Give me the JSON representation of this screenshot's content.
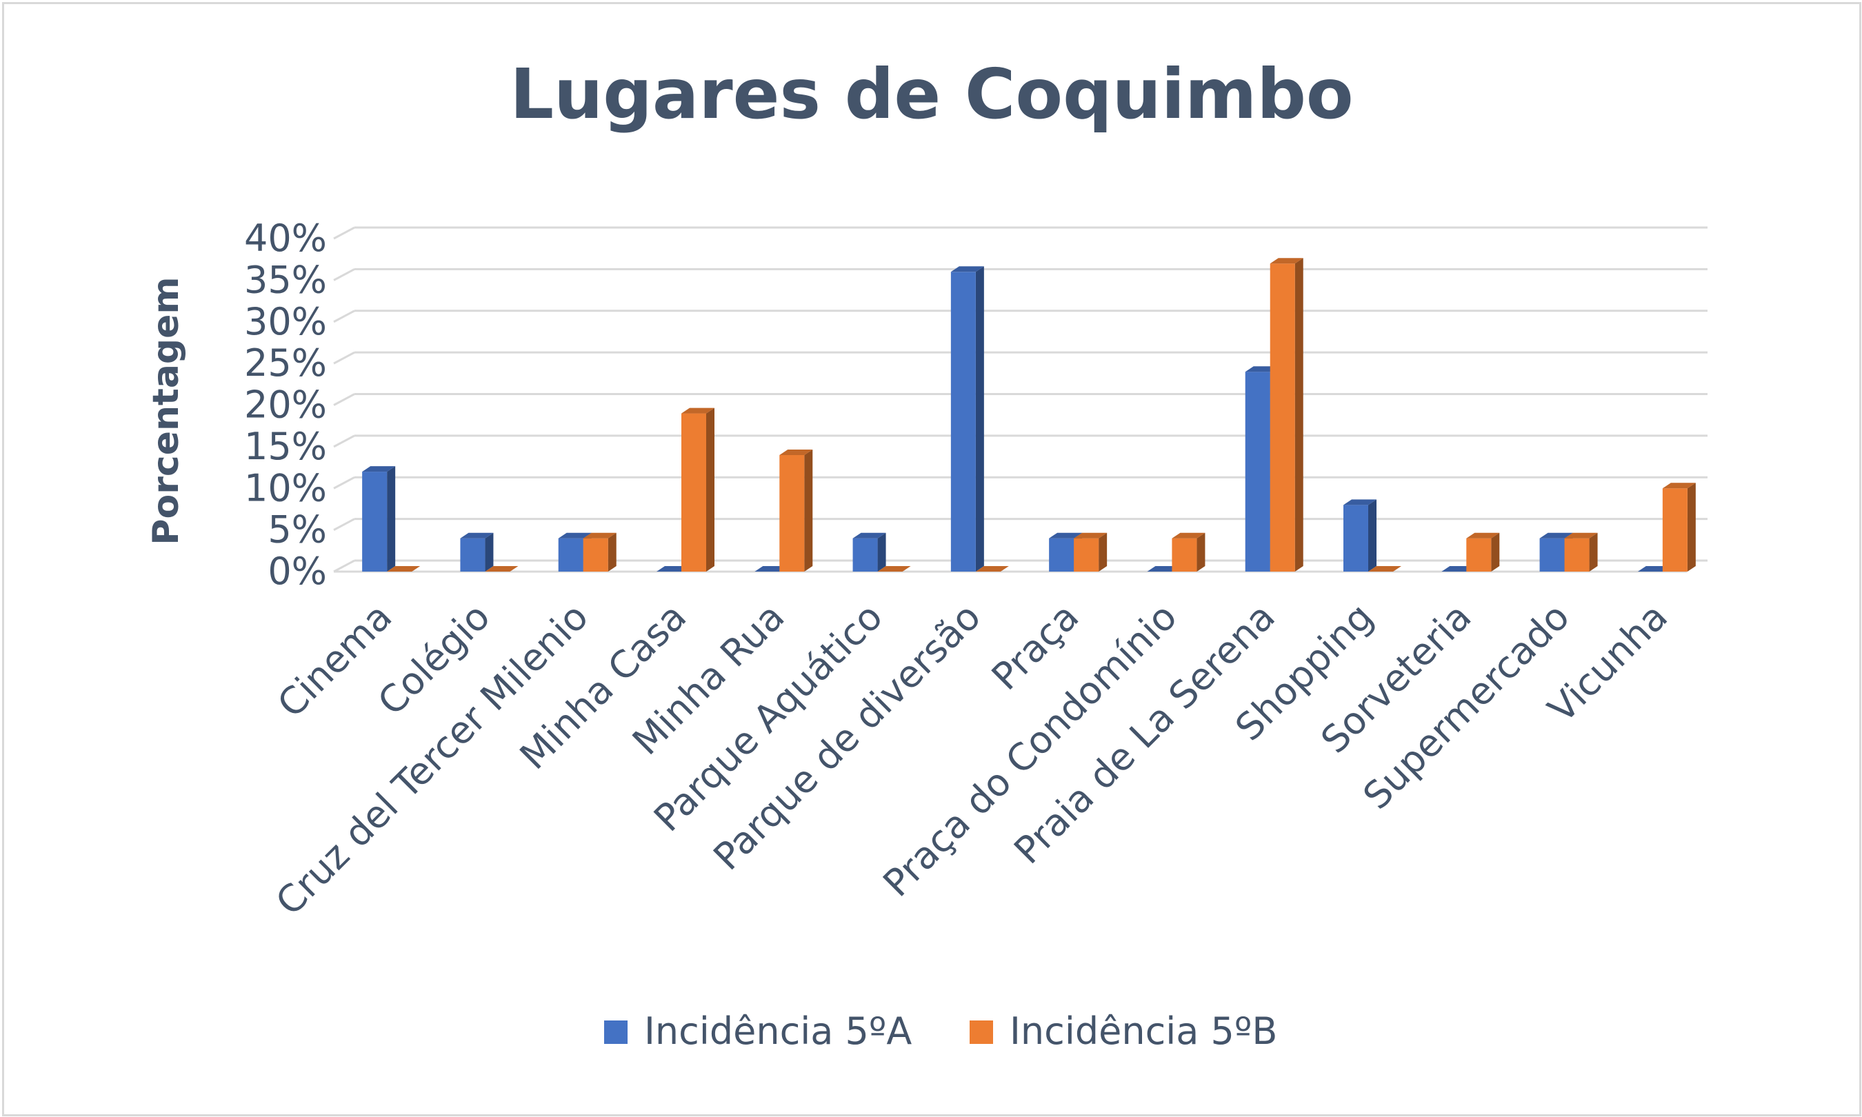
{
  "chart_data": {
    "type": "bar",
    "title": "Lugares de Coquimbo",
    "ylabel": "Porcentagem",
    "xlabel": "",
    "ylim": [
      0,
      40
    ],
    "yticks": [
      "0%",
      "5%",
      "10%",
      "15%",
      "20%",
      "25%",
      "30%",
      "35%",
      "40%"
    ],
    "categories": [
      "Cinema",
      "Colégio",
      "Cruz del Tercer Milenio",
      "Minha Casa",
      "Minha Rua",
      "Parque Aquático",
      "Parque de diversão",
      "Praça",
      "Praça do Condomínio",
      "Praia de La Serena",
      "Shopping",
      "Sorveteria",
      "Supermercado",
      "Vicunha"
    ],
    "series": [
      {
        "name": "Incidência 5ºA",
        "color": "#4472c4",
        "values": [
          12,
          4,
          4,
          0,
          0,
          4,
          36,
          4,
          0,
          24,
          8,
          0,
          4,
          0
        ]
      },
      {
        "name": "Incidência 5ºB",
        "color": "#ed7d31",
        "values": [
          0,
          0,
          4,
          19,
          14,
          0,
          0,
          4,
          4,
          37,
          0,
          4,
          4,
          10
        ]
      }
    ],
    "grid": true,
    "legend": "bottom",
    "style": "3d-clustered-column"
  }
}
